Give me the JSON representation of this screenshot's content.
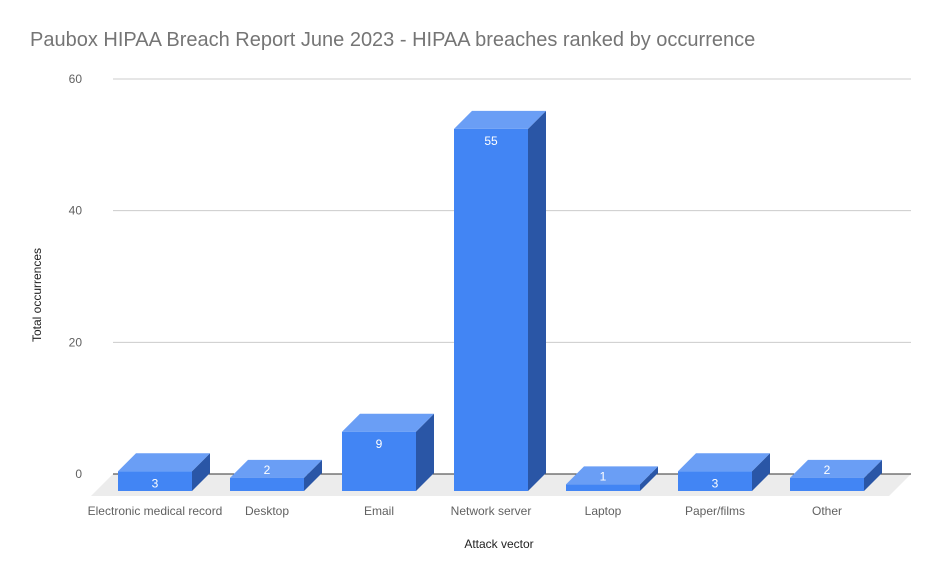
{
  "title": "Paubox HIPAA Breach Report June 2023 - HIPAA breaches ranked by occurrence",
  "colors": {
    "front": "#4285f4",
    "top": "#6a9ef5",
    "side": "#2a56a6",
    "floor": "#ececec",
    "grid": "#cccccc",
    "baseline": "#333333"
  },
  "chart_data": {
    "type": "bar",
    "title": "Paubox HIPAA Breach Report June 2023 - HIPAA breaches ranked by occurrence",
    "xlabel": "Attack vector",
    "ylabel": "Total occurrences",
    "categories": [
      "Electronic medical record",
      "Desktop",
      "Email",
      "Network server",
      "Laptop",
      "Paper/films",
      "Other"
    ],
    "values": [
      3,
      2,
      9,
      55,
      1,
      3,
      2
    ],
    "yticks": [
      0,
      20,
      40,
      60
    ],
    "ylim": [
      0,
      60
    ],
    "grid": true,
    "legend": "none",
    "style": "3d"
  }
}
